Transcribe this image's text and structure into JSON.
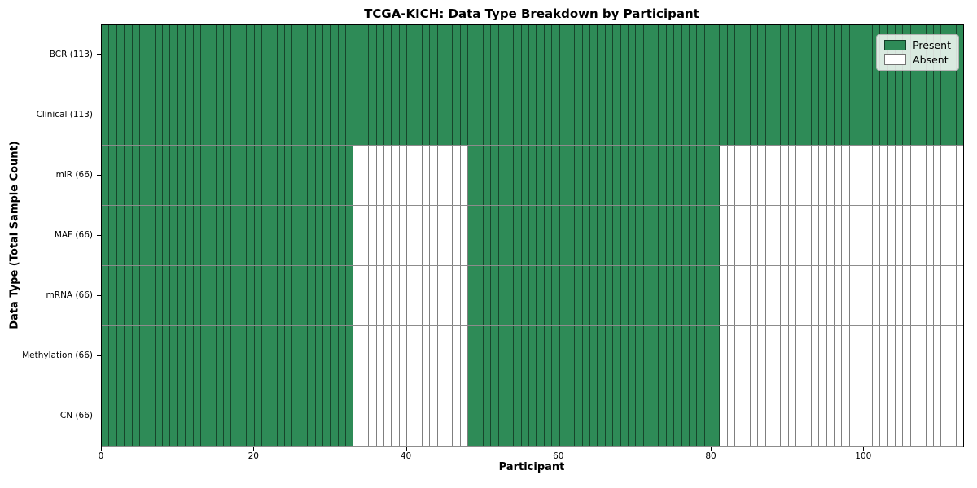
{
  "chart_data": {
    "type": "heatmap",
    "title": "TCGA-KICH: Data Type Breakdown by Participant",
    "xlabel": "Participant",
    "ylabel": "Data Type (Total Sample Count)",
    "x_ticks": [
      0,
      20,
      40,
      60,
      80,
      100
    ],
    "x_range": [
      0,
      113
    ],
    "n_participants": 113,
    "legend": {
      "position": "upper-right",
      "entries": [
        {
          "label": "Present",
          "color": "#2e8b57"
        },
        {
          "label": "Absent",
          "color": "#ffffff"
        }
      ]
    },
    "colors": {
      "present": "#2e8b57",
      "absent": "#ffffff",
      "cell_edge": "rgba(0,0,0,0.5)",
      "axis": "#000000"
    },
    "rows": [
      {
        "label": "BCR (113)",
        "total": 113,
        "present_runs": [
          [
            0,
            113
          ]
        ]
      },
      {
        "label": "Clinical (113)",
        "total": 113,
        "present_runs": [
          [
            0,
            113
          ]
        ]
      },
      {
        "label": "miR (66)",
        "total": 66,
        "present_runs": [
          [
            0,
            33
          ],
          [
            48,
            81
          ]
        ]
      },
      {
        "label": "MAF (66)",
        "total": 66,
        "present_runs": [
          [
            0,
            33
          ],
          [
            48,
            81
          ]
        ]
      },
      {
        "label": "mRNA (66)",
        "total": 66,
        "present_runs": [
          [
            0,
            33
          ],
          [
            48,
            81
          ]
        ]
      },
      {
        "label": "Methylation (66)",
        "total": 66,
        "present_runs": [
          [
            0,
            33
          ],
          [
            48,
            81
          ]
        ]
      },
      {
        "label": "CN (66)",
        "total": 66,
        "present_runs": [
          [
            0,
            33
          ],
          [
            48,
            81
          ]
        ]
      }
    ]
  }
}
